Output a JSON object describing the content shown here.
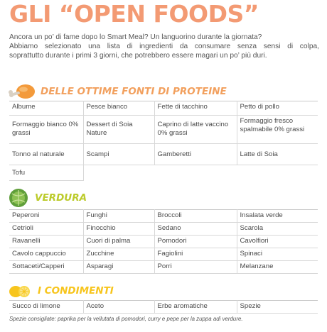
{
  "title": "GLI “OPEN FOODS”",
  "intro": {
    "line1": "Ancora un po’ di fame dopo lo Smart Meal? Un languorino durante la giornata?",
    "line2": "Abbiamo selezionato una lista di ingredienti da consumare senza sensi di colpa,",
    "line3": "soprattutto durante i primi 3 giorni, che potrebbero essere magari un po’ più duri."
  },
  "colors": {
    "title": "#f39a73",
    "proteine": "#f2a05e",
    "verdura": "#bccb2b",
    "condimenti": "#f7c51d"
  },
  "sections": {
    "proteine": {
      "title": "DELLE OTTIME FONTI DI PROTEINE",
      "icon": "chicken-leg-icon",
      "rows": [
        [
          "Albume",
          "Pesce bianco",
          "Fette di tacchino",
          "Petto di pollo"
        ],
        [
          "Formaggio bianco 0% grassi",
          "Dessert di Soia Nature",
          "Caprino di latte vaccino 0% grassi",
          "Formaggio fresco spalmabile 0% grassi"
        ],
        [
          "Tonno al naturale",
          "Scampi",
          "Gamberetti",
          "Latte di Soia"
        ],
        [
          "Tofu",
          "",
          "",
          ""
        ]
      ]
    },
    "verdura": {
      "title": "VERDURA",
      "icon": "cabbage-icon",
      "rows": [
        [
          "Peperoni",
          "Funghi",
          "Broccoli",
          "Insalata verde"
        ],
        [
          "Cetrioli",
          "Finocchio",
          "Sedano",
          "Scarola"
        ],
        [
          "Ravanelli",
          "Cuori di palma",
          "Pomodori",
          "Cavolfiori"
        ],
        [
          "Cavolo cappuccio",
          "Zucchine",
          "Fagiolini",
          "Spinaci"
        ],
        [
          "Sottaceti/Capperi",
          "Asparagi",
          "Porri",
          "Melanzane"
        ]
      ]
    },
    "condimenti": {
      "title": "I CONDIMENTI",
      "icon": "lemon-icon",
      "rows": [
        [
          "Succo di limone",
          "Aceto",
          "Erbe aromatiche",
          "Spezie"
        ]
      ],
      "note": "Spezie consigliate: paprika per la vellutata di pomodori, curry e pepe per la zuppa adi verdure."
    }
  }
}
